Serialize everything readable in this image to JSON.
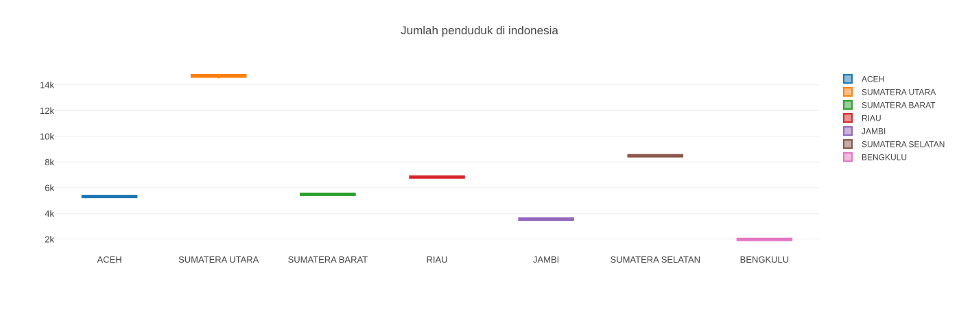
{
  "chart_data": {
    "type": "box",
    "title": "Jumlah penduduk di indonesia",
    "xlabel": "",
    "ylabel": "",
    "ylim": [
      1400,
      15800
    ],
    "y_ticks": [
      2000,
      4000,
      6000,
      8000,
      10000,
      12000,
      14000
    ],
    "y_tick_labels": [
      "2k",
      "4k",
      "6k",
      "8k",
      "10k",
      "12k",
      "14k"
    ],
    "grid": true,
    "legend_position": "right",
    "categories": [
      "ACEH",
      "SUMATERA UTARA",
      "SUMATERA BARAT",
      "RIAU",
      "JAMBI",
      "SUMATERA SELATAN",
      "BENGKULU"
    ],
    "series": [
      {
        "name": "ACEH",
        "color": "#1f77b4",
        "q1": 5290,
        "median": 5320,
        "q3": 5340,
        "min": 5260,
        "max": 5360
      },
      {
        "name": "SUMATERA UTARA",
        "color": "#ff7f0e",
        "q1": 14600,
        "median": 14700,
        "q3": 14790,
        "min": 14500,
        "max": 14850
      },
      {
        "name": "SUMATERA BARAT",
        "color": "#2ca02c",
        "q1": 5460,
        "median": 5490,
        "q3": 5510,
        "min": 5440,
        "max": 5530
      },
      {
        "name": "RIAU",
        "color": "#d62728",
        "q1": 6780,
        "median": 6830,
        "q3": 6880,
        "min": 6740,
        "max": 6910
      },
      {
        "name": "JAMBI",
        "color": "#9467bd",
        "q1": 3540,
        "median": 3560,
        "q3": 3580,
        "min": 3520,
        "max": 3600
      },
      {
        "name": "SUMATERA SELATAN",
        "color": "#8c564b",
        "q1": 8440,
        "median": 8490,
        "q3": 8530,
        "min": 8400,
        "max": 8570
      },
      {
        "name": "BENGKULU",
        "color": "#e377c2",
        "q1": 1960,
        "median": 1975,
        "q3": 1990,
        "min": 1950,
        "max": 2000
      }
    ]
  }
}
